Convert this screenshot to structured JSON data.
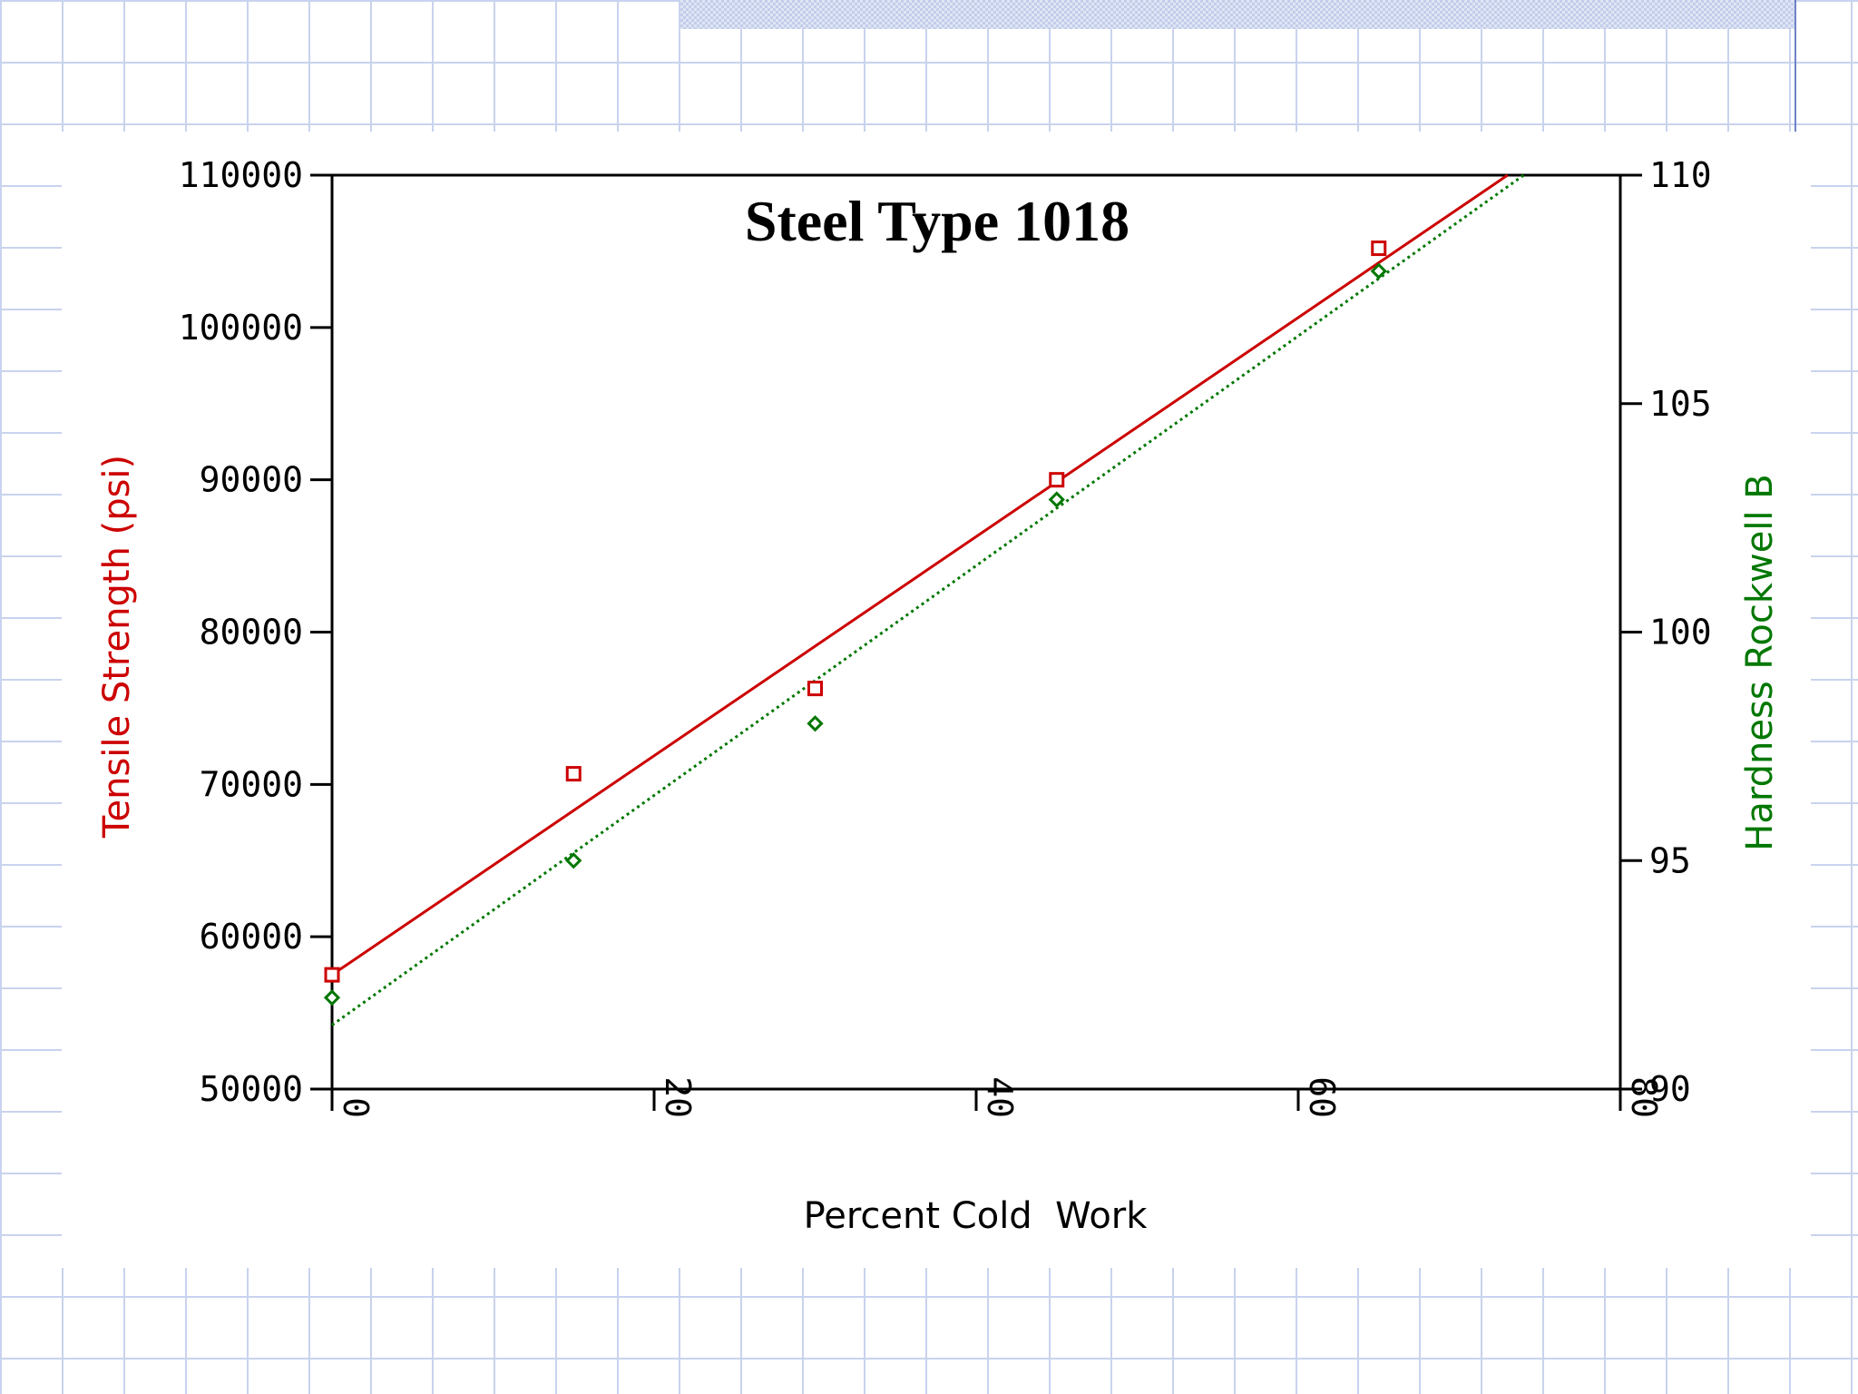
{
  "chart_data": {
    "type": "scatter",
    "title": "Steel Type 1018",
    "xlabel": "Percent Cold  Work",
    "ylabel": "Tensile Strength (psi)",
    "ylabel_right": "Hardness Rockwell B",
    "xlim": [
      0,
      80
    ],
    "ylim": [
      50000,
      110000
    ],
    "ylim_right": [
      90,
      110
    ],
    "x_ticks": [
      "0",
      "20",
      "40",
      "60",
      "80"
    ],
    "y_ticks": [
      "50000",
      "60000",
      "70000",
      "80000",
      "90000",
      "100000",
      "110000"
    ],
    "y_ticks_right": [
      "90",
      "95",
      "100",
      "105",
      "110"
    ],
    "grid": false,
    "series": [
      {
        "name": "Tensile Strength (psi)",
        "axis": "left",
        "color": "#cc0000",
        "marker": "square",
        "x": [
          0,
          15,
          30,
          45,
          65
        ],
        "y": [
          57500,
          70700,
          76300,
          90000,
          105200
        ],
        "fit": {
          "style": "solid",
          "x": [
            0,
            73
          ],
          "y": [
            57500,
            110000
          ]
        }
      },
      {
        "name": "Hardness Rockwell B",
        "axis": "right",
        "color": "#007700",
        "marker": "diamond",
        "x": [
          0,
          15,
          30,
          45,
          65
        ],
        "y": [
          92,
          95,
          98,
          102.9,
          107.9
        ],
        "fit": {
          "style": "dotted",
          "x": [
            0,
            74
          ],
          "y": [
            91.4,
            110
          ]
        }
      }
    ]
  }
}
